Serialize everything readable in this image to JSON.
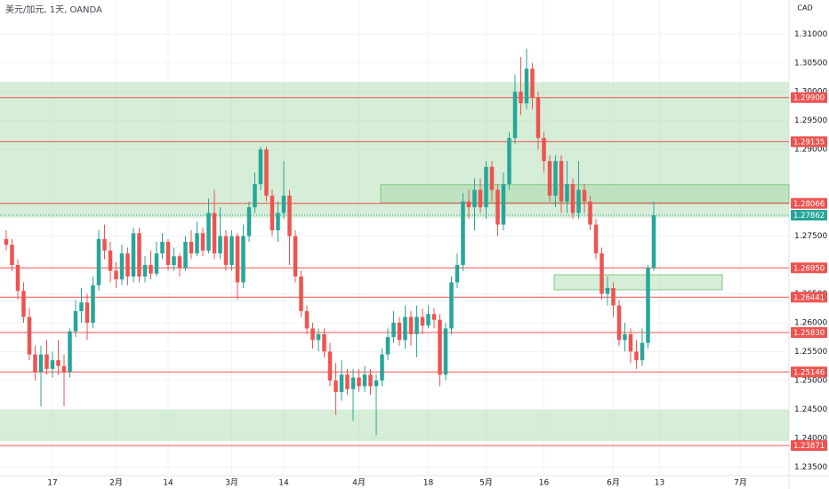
{
  "chart_data": {
    "type": "candlestick",
    "title": "美元/加元, 1天, OANDA",
    "y_axis_label": "CAD",
    "up_color": "#26a69a",
    "down_color": "#ef5350",
    "level_color": "#ef5350",
    "zone_color": "#a5d6a7",
    "current_color": "#26a69a",
    "grid": true,
    "categories": [
      null,
      null,
      null,
      null,
      null,
      null,
      null,
      null,
      "17",
      null,
      null,
      null,
      null,
      null,
      null,
      null,
      null,
      null,
      null,
      "2月",
      null,
      null,
      null,
      null,
      null,
      null,
      null,
      null,
      "14",
      null,
      null,
      null,
      null,
      null,
      null,
      null,
      null,
      null,
      null,
      "3月",
      null,
      null,
      null,
      null,
      null,
      null,
      null,
      null,
      "14",
      null,
      null,
      null,
      null,
      null,
      null,
      null,
      null,
      null,
      null,
      null,
      null,
      "4月",
      null,
      null,
      null,
      null,
      null,
      null,
      null,
      null,
      null,
      null,
      null,
      "18",
      null,
      null,
      null,
      null,
      null,
      null,
      null,
      null,
      null,
      "5月",
      null,
      null,
      null,
      null,
      null,
      null,
      null,
      null,
      null,
      "16",
      null,
      null,
      null,
      null,
      null,
      null,
      null,
      null,
      null,
      null,
      null,
      "6月",
      null,
      null,
      null,
      null,
      null,
      null,
      null,
      "13",
      null,
      null,
      null,
      null,
      null,
      null,
      null,
      null,
      null,
      null,
      null,
      null,
      null,
      "7月"
    ],
    "open": [
      1.2745,
      1.2735,
      1.27,
      1.2655,
      1.261,
      1.2545,
      1.2515,
      1.2545,
      1.252,
      1.2535,
      1.2525,
      1.2515,
      1.2585,
      1.262,
      1.2635,
      1.26,
      1.2665,
      1.2745,
      1.2725,
      1.269,
      1.2675,
      1.272,
      1.268,
      1.2755,
      1.268,
      1.27,
      1.2685,
      1.272,
      1.274,
      1.27,
      1.2715,
      1.2695,
      1.274,
      1.272,
      1.2755,
      1.2725,
      1.279,
      1.272,
      1.275,
      1.27,
      1.275,
      1.267,
      1.275,
      1.28,
      1.284,
      1.29,
      1.282,
      1.276,
      1.279,
      1.282,
      1.275,
      1.268,
      1.262,
      1.259,
      1.257,
      1.258,
      1.255,
      1.25,
      1.248,
      1.251,
      1.2485,
      1.2505,
      1.249,
      1.251,
      1.249,
      1.25,
      1.2545,
      1.2575,
      1.26,
      1.257,
      1.261,
      1.258,
      1.261,
      1.2595,
      1.2615,
      1.2605,
      1.251,
      1.259,
      1.267,
      1.27,
      1.281,
      1.28,
      1.283,
      1.28,
      1.287,
      1.283,
      1.277,
      1.284,
      1.292,
      1.3,
      1.298,
      1.304,
      1.299,
      1.292,
      1.288,
      1.282,
      1.288,
      1.281,
      1.284,
      1.279,
      1.283,
      1.281,
      1.277,
      1.272,
      1.265,
      1.266,
      1.263,
      1.257,
      1.258,
      1.255,
      1.2535,
      1.2565,
      1.2695,
      null,
      null,
      null,
      null,
      null,
      null,
      null,
      null,
      null,
      null,
      null,
      null,
      null,
      null,
      null
    ],
    "high": [
      1.276,
      1.2745,
      1.271,
      1.267,
      1.2625,
      1.256,
      1.256,
      1.257,
      1.255,
      1.257,
      1.2545,
      1.259,
      1.264,
      1.266,
      1.265,
      1.268,
      1.276,
      1.277,
      1.274,
      1.2705,
      1.2735,
      1.273,
      1.2765,
      1.2765,
      1.2715,
      1.2725,
      1.274,
      1.2755,
      1.2745,
      1.273,
      1.272,
      1.275,
      1.276,
      1.2775,
      1.2765,
      1.2815,
      1.283,
      1.28,
      1.276,
      1.276,
      1.2755,
      1.277,
      1.281,
      1.286,
      1.2905,
      1.2905,
      1.283,
      1.281,
      1.288,
      1.283,
      1.276,
      1.269,
      1.263,
      1.26,
      1.259,
      1.259,
      1.2565,
      1.253,
      1.2535,
      1.252,
      1.252,
      1.252,
      1.2525,
      1.252,
      1.251,
      1.2555,
      1.259,
      1.262,
      1.261,
      1.263,
      1.262,
      1.263,
      1.2625,
      1.263,
      1.2625,
      1.2615,
      1.26,
      1.268,
      1.272,
      1.2825,
      1.283,
      1.285,
      1.285,
      1.288,
      1.288,
      1.284,
      1.286,
      1.293,
      1.303,
      1.306,
      1.3075,
      1.305,
      1.3,
      1.293,
      1.289,
      1.289,
      1.289,
      1.288,
      1.285,
      1.288,
      1.284,
      1.282,
      1.278,
      1.273,
      1.268,
      1.267,
      1.264,
      1.26,
      1.259,
      1.257,
      1.259,
      1.27,
      1.281,
      null,
      null,
      null,
      null,
      null,
      null,
      null,
      null,
      null,
      null,
      null,
      null,
      null,
      null,
      null
    ],
    "low": [
      1.2725,
      1.269,
      1.264,
      1.26,
      1.2535,
      1.25,
      1.2455,
      1.251,
      1.2505,
      1.251,
      1.2455,
      1.2505,
      1.2575,
      1.26,
      1.257,
      1.259,
      1.2655,
      1.271,
      1.267,
      1.266,
      1.2665,
      1.2665,
      1.267,
      1.267,
      1.267,
      1.2675,
      1.268,
      1.271,
      1.269,
      1.269,
      1.268,
      1.269,
      1.271,
      1.2715,
      1.2715,
      1.272,
      1.271,
      1.271,
      1.269,
      1.269,
      1.264,
      1.266,
      1.274,
      1.279,
      1.283,
      1.281,
      1.275,
      1.274,
      1.278,
      1.27,
      1.267,
      1.261,
      1.258,
      1.2555,
      1.255,
      1.254,
      1.249,
      1.244,
      1.2465,
      1.2475,
      1.243,
      1.248,
      1.248,
      1.2475,
      1.2405,
      1.249,
      1.2535,
      1.2565,
      1.256,
      1.2555,
      1.256,
      1.254,
      1.258,
      1.259,
      1.259,
      1.249,
      1.25,
      1.258,
      1.266,
      1.269,
      1.278,
      1.276,
      1.279,
      1.278,
      1.281,
      1.275,
      1.276,
      1.283,
      1.291,
      1.296,
      1.297,
      1.297,
      1.29,
      1.286,
      1.281,
      1.28,
      1.279,
      1.279,
      1.278,
      1.278,
      1.279,
      1.276,
      1.271,
      1.264,
      1.263,
      1.261,
      1.256,
      1.255,
      1.253,
      1.252,
      1.2525,
      1.2555,
      1.269,
      null,
      null,
      null,
      null,
      null,
      null,
      null,
      null,
      null,
      null,
      null,
      null,
      null,
      null,
      null
    ],
    "close": [
      1.2735,
      1.27,
      1.2655,
      1.261,
      1.2545,
      1.2515,
      1.2545,
      1.252,
      1.2535,
      1.2525,
      1.2515,
      1.2585,
      1.262,
      1.2635,
      1.26,
      1.2665,
      1.2745,
      1.2725,
      1.269,
      1.2675,
      1.272,
      1.268,
      1.2755,
      1.268,
      1.27,
      1.2685,
      1.272,
      1.274,
      1.27,
      1.2715,
      1.2695,
      1.274,
      1.272,
      1.2755,
      1.2725,
      1.279,
      1.272,
      1.275,
      1.27,
      1.275,
      1.267,
      1.275,
      1.28,
      1.284,
      1.29,
      1.282,
      1.276,
      1.279,
      1.282,
      1.275,
      1.268,
      1.262,
      1.259,
      1.257,
      1.258,
      1.255,
      1.25,
      1.248,
      1.251,
      1.2485,
      1.2505,
      1.249,
      1.251,
      1.249,
      1.25,
      1.2545,
      1.2575,
      1.26,
      1.257,
      1.261,
      1.258,
      1.261,
      1.2595,
      1.2615,
      1.2605,
      1.251,
      1.259,
      1.267,
      1.27,
      1.281,
      1.28,
      1.283,
      1.28,
      1.287,
      1.283,
      1.277,
      1.284,
      1.292,
      1.3,
      1.298,
      1.304,
      1.299,
      1.292,
      1.288,
      1.282,
      1.288,
      1.281,
      1.284,
      1.279,
      1.283,
      1.281,
      1.277,
      1.272,
      1.265,
      1.266,
      1.263,
      1.257,
      1.258,
      1.255,
      1.2535,
      1.2565,
      1.2695,
      1.2786,
      null,
      null,
      null,
      null,
      null,
      null,
      null,
      null,
      null,
      null,
      null,
      null,
      null,
      null,
      null
    ],
    "ylim": [
      1.2335,
      1.3159
    ],
    "yticks": [
      {
        "value": 1.235,
        "label": "1.23500"
      },
      {
        "value": 1.24,
        "label": "1.24000"
      },
      {
        "value": 1.245,
        "label": "1.24500"
      },
      {
        "value": 1.25,
        "label": "1.25000"
      },
      {
        "value": 1.255,
        "label": "1.25500"
      },
      {
        "value": 1.26,
        "label": "1.26000"
      },
      {
        "value": 1.265,
        "label": "1.26500"
      },
      {
        "value": 1.275,
        "label": "1.27500"
      },
      {
        "value": 1.29,
        "label": "1.29000"
      },
      {
        "value": 1.295,
        "label": "1.29500"
      },
      {
        "value": 1.3,
        "label": "1.30000"
      },
      {
        "value": 1.305,
        "label": "1.30500"
      },
      {
        "value": 1.31,
        "label": "1.31000"
      }
    ],
    "zones": [
      {
        "low": 1.2782,
        "high": 1.3017
      },
      {
        "low": 1.2395,
        "high": 1.2449
      },
      {
        "low": 1.2808,
        "high": 1.2839
      },
      {
        "low": 1.2657,
        "high": 1.2683
      }
    ],
    "levels": [
      {
        "value": 1.299,
        "label": "1.29900"
      },
      {
        "value": 1.29135,
        "label": "1.29135"
      },
      {
        "value": 1.28066,
        "label": "1.28066"
      },
      {
        "value": 1.2695,
        "label": "1.26950"
      },
      {
        "value": 1.26441,
        "label": "1.26441"
      },
      {
        "value": 1.2583,
        "label": "1.25830"
      },
      {
        "value": 1.25146,
        "label": "1.25146"
      },
      {
        "value": 1.23871,
        "label": "1.23871"
      }
    ],
    "current_price": {
      "value": 1.27862,
      "label": "1.27862"
    }
  }
}
